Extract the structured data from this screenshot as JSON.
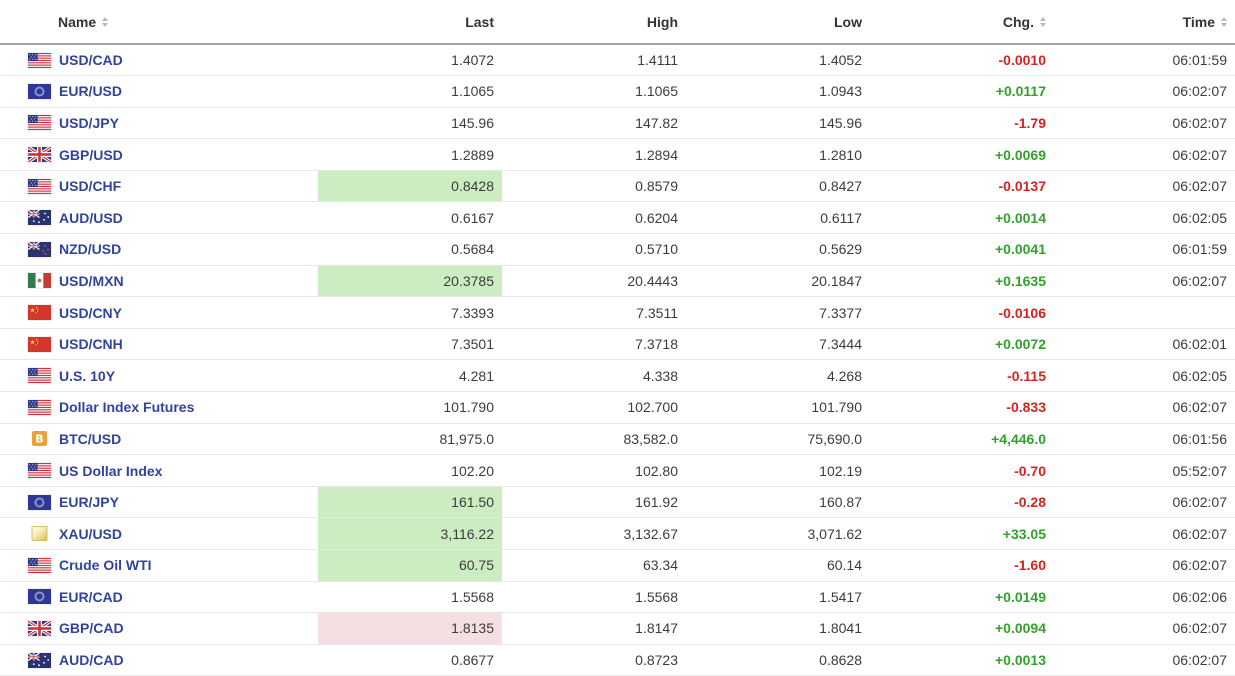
{
  "colors": {
    "name_link": "#31439b",
    "change_up": "#33a02c",
    "change_down": "#d42420",
    "flash_up_bg": "#ccecc2",
    "flash_down_bg": "#f4e0e2"
  },
  "table": {
    "columns": [
      {
        "label": "Name",
        "sortable": true
      },
      {
        "label": "Last",
        "sortable": false
      },
      {
        "label": "High",
        "sortable": false
      },
      {
        "label": "Low",
        "sortable": false
      },
      {
        "label": "Chg.",
        "sortable": true
      },
      {
        "label": "Time",
        "sortable": true
      }
    ],
    "rows": [
      {
        "name": "USD/CAD",
        "icon": "us-flag-icon",
        "last": "1.4072",
        "high": "1.4111",
        "low": "1.4052",
        "chg": "-0.0010",
        "chg_dir": "down",
        "time": "06:01:59",
        "flash": "none"
      },
      {
        "name": "EUR/USD",
        "icon": "eu-flag-icon",
        "last": "1.1065",
        "high": "1.1065",
        "low": "1.0943",
        "chg": "+0.0117",
        "chg_dir": "up",
        "time": "06:02:07",
        "flash": "none"
      },
      {
        "name": "USD/JPY",
        "icon": "us-flag-icon",
        "last": "145.96",
        "high": "147.82",
        "low": "145.96",
        "chg": "-1.79",
        "chg_dir": "down",
        "time": "06:02:07",
        "flash": "none"
      },
      {
        "name": "GBP/USD",
        "icon": "gb-flag-icon",
        "last": "1.2889",
        "high": "1.2894",
        "low": "1.2810",
        "chg": "+0.0069",
        "chg_dir": "up",
        "time": "06:02:07",
        "flash": "none"
      },
      {
        "name": "USD/CHF",
        "icon": "us-flag-icon",
        "last": "0.8428",
        "high": "0.8579",
        "low": "0.8427",
        "chg": "-0.0137",
        "chg_dir": "down",
        "time": "06:02:07",
        "flash": "up"
      },
      {
        "name": "AUD/USD",
        "icon": "au-flag-icon",
        "last": "0.6167",
        "high": "0.6204",
        "low": "0.6117",
        "chg": "+0.0014",
        "chg_dir": "up",
        "time": "06:02:05",
        "flash": "none"
      },
      {
        "name": "NZD/USD",
        "icon": "nz-flag-icon",
        "last": "0.5684",
        "high": "0.5710",
        "low": "0.5629",
        "chg": "+0.0041",
        "chg_dir": "up",
        "time": "06:01:59",
        "flash": "none"
      },
      {
        "name": "USD/MXN",
        "icon": "mx-flag-icon",
        "last": "20.3785",
        "high": "20.4443",
        "low": "20.1847",
        "chg": "+0.1635",
        "chg_dir": "up",
        "time": "06:02:07",
        "flash": "up"
      },
      {
        "name": "USD/CNY",
        "icon": "cn-flag-icon",
        "last": "7.3393",
        "high": "7.3511",
        "low": "7.3377",
        "chg": "-0.0106",
        "chg_dir": "down",
        "time": "",
        "flash": "none"
      },
      {
        "name": "USD/CNH",
        "icon": "cn-flag-icon",
        "last": "7.3501",
        "high": "7.3718",
        "low": "7.3444",
        "chg": "+0.0072",
        "chg_dir": "up",
        "time": "06:02:01",
        "flash": "none"
      },
      {
        "name": "U.S. 10Y",
        "icon": "us-flag-icon",
        "last": "4.281",
        "high": "4.338",
        "low": "4.268",
        "chg": "-0.115",
        "chg_dir": "down",
        "time": "06:02:05",
        "flash": "none"
      },
      {
        "name": "Dollar Index Futures",
        "icon": "us-flag-icon",
        "last": "101.790",
        "high": "102.700",
        "low": "101.790",
        "chg": "-0.833",
        "chg_dir": "down",
        "time": "06:02:07",
        "flash": "none"
      },
      {
        "name": "BTC/USD",
        "icon": "btc-icon",
        "last": "81,975.0",
        "high": "83,582.0",
        "low": "75,690.0",
        "chg": "+4,446.0",
        "chg_dir": "up",
        "time": "06:01:56",
        "flash": "none"
      },
      {
        "name": "US Dollar Index",
        "icon": "us-flag-icon",
        "last": "102.20",
        "high": "102.80",
        "low": "102.19",
        "chg": "-0.70",
        "chg_dir": "down",
        "time": "05:52:07",
        "flash": "none"
      },
      {
        "name": "EUR/JPY",
        "icon": "eu-flag-icon",
        "last": "161.50",
        "high": "161.92",
        "low": "160.87",
        "chg": "-0.28",
        "chg_dir": "down",
        "time": "06:02:07",
        "flash": "up"
      },
      {
        "name": "XAU/USD",
        "icon": "gold-bar-icon",
        "last": "3,116.22",
        "high": "3,132.67",
        "low": "3,071.62",
        "chg": "+33.05",
        "chg_dir": "up",
        "time": "06:02:07",
        "flash": "up"
      },
      {
        "name": "Crude Oil WTI",
        "icon": "us-flag-icon",
        "last": "60.75",
        "high": "63.34",
        "low": "60.14",
        "chg": "-1.60",
        "chg_dir": "down",
        "time": "06:02:07",
        "flash": "up"
      },
      {
        "name": "EUR/CAD",
        "icon": "eu-flag-icon",
        "last": "1.5568",
        "high": "1.5568",
        "low": "1.5417",
        "chg": "+0.0149",
        "chg_dir": "up",
        "time": "06:02:06",
        "flash": "none"
      },
      {
        "name": "GBP/CAD",
        "icon": "gb-flag-icon",
        "last": "1.8135",
        "high": "1.8147",
        "low": "1.8041",
        "chg": "+0.0094",
        "chg_dir": "up",
        "time": "06:02:07",
        "flash": "down"
      },
      {
        "name": "AUD/CAD",
        "icon": "au-flag-icon",
        "last": "0.8677",
        "high": "0.8723",
        "low": "0.8628",
        "chg": "+0.0013",
        "chg_dir": "up",
        "time": "06:02:07",
        "flash": "none"
      }
    ]
  }
}
